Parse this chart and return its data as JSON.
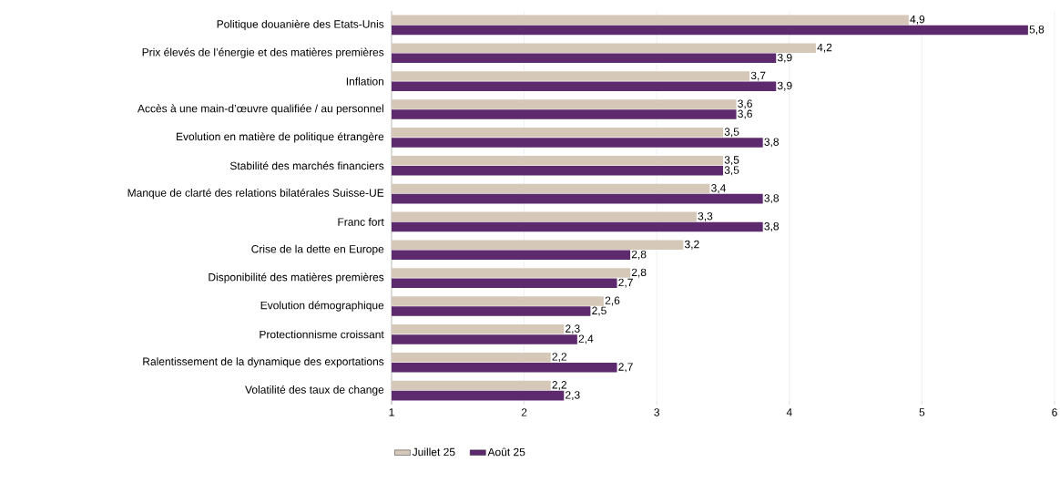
{
  "chart_data": {
    "type": "bar",
    "orientation": "horizontal",
    "categories": [
      "Politique douanière des Etats-Unis",
      "Prix élevés de l’énergie et des matières premières",
      "Inflation",
      "Accès à une main-d’œuvre qualifiée / au personnel",
      "Evolution en matière de politique étrangère",
      "Stabilité des marchés financiers",
      "Manque de clarté des relations bilatérales Suisse-UE",
      "Franc fort",
      "Crise de la dette en Europe",
      "Disponibilité des matières premières",
      "Evolution démographique",
      "Protectionnisme croissant",
      "Ralentissement de la dynamique des exportations",
      "Volatilité des taux de change"
    ],
    "series": [
      {
        "name": "Juillet 25",
        "color": "#d5c8b8",
        "values": [
          4.9,
          4.2,
          3.7,
          3.6,
          3.5,
          3.5,
          3.4,
          3.3,
          3.2,
          2.8,
          2.6,
          2.3,
          2.2,
          2.2
        ],
        "value_labels": [
          "4,9",
          "4,2",
          "3,7",
          "3,6",
          "3,5",
          "3,5",
          "3,4",
          "3,3",
          "3,2",
          "2,8",
          "2,6",
          "2,3",
          "2,2",
          "2,2"
        ]
      },
      {
        "name": "Août 25",
        "color": "#5e2a6e",
        "values": [
          5.8,
          3.9,
          3.9,
          3.6,
          3.8,
          3.5,
          3.8,
          3.8,
          2.8,
          2.7,
          2.5,
          2.4,
          2.7,
          2.3
        ],
        "value_labels": [
          "5,8",
          "3,9",
          "3,9",
          "3,6",
          "3,8",
          "3,5",
          "3,8",
          "3,8",
          "2,8",
          "2,7",
          "2,5",
          "2,4",
          "2,7",
          "2,3"
        ]
      }
    ],
    "xlim": [
      1,
      6
    ],
    "xticks": [
      1,
      2,
      3,
      4,
      5,
      6
    ],
    "grid": "x",
    "legend": "bottom left"
  }
}
